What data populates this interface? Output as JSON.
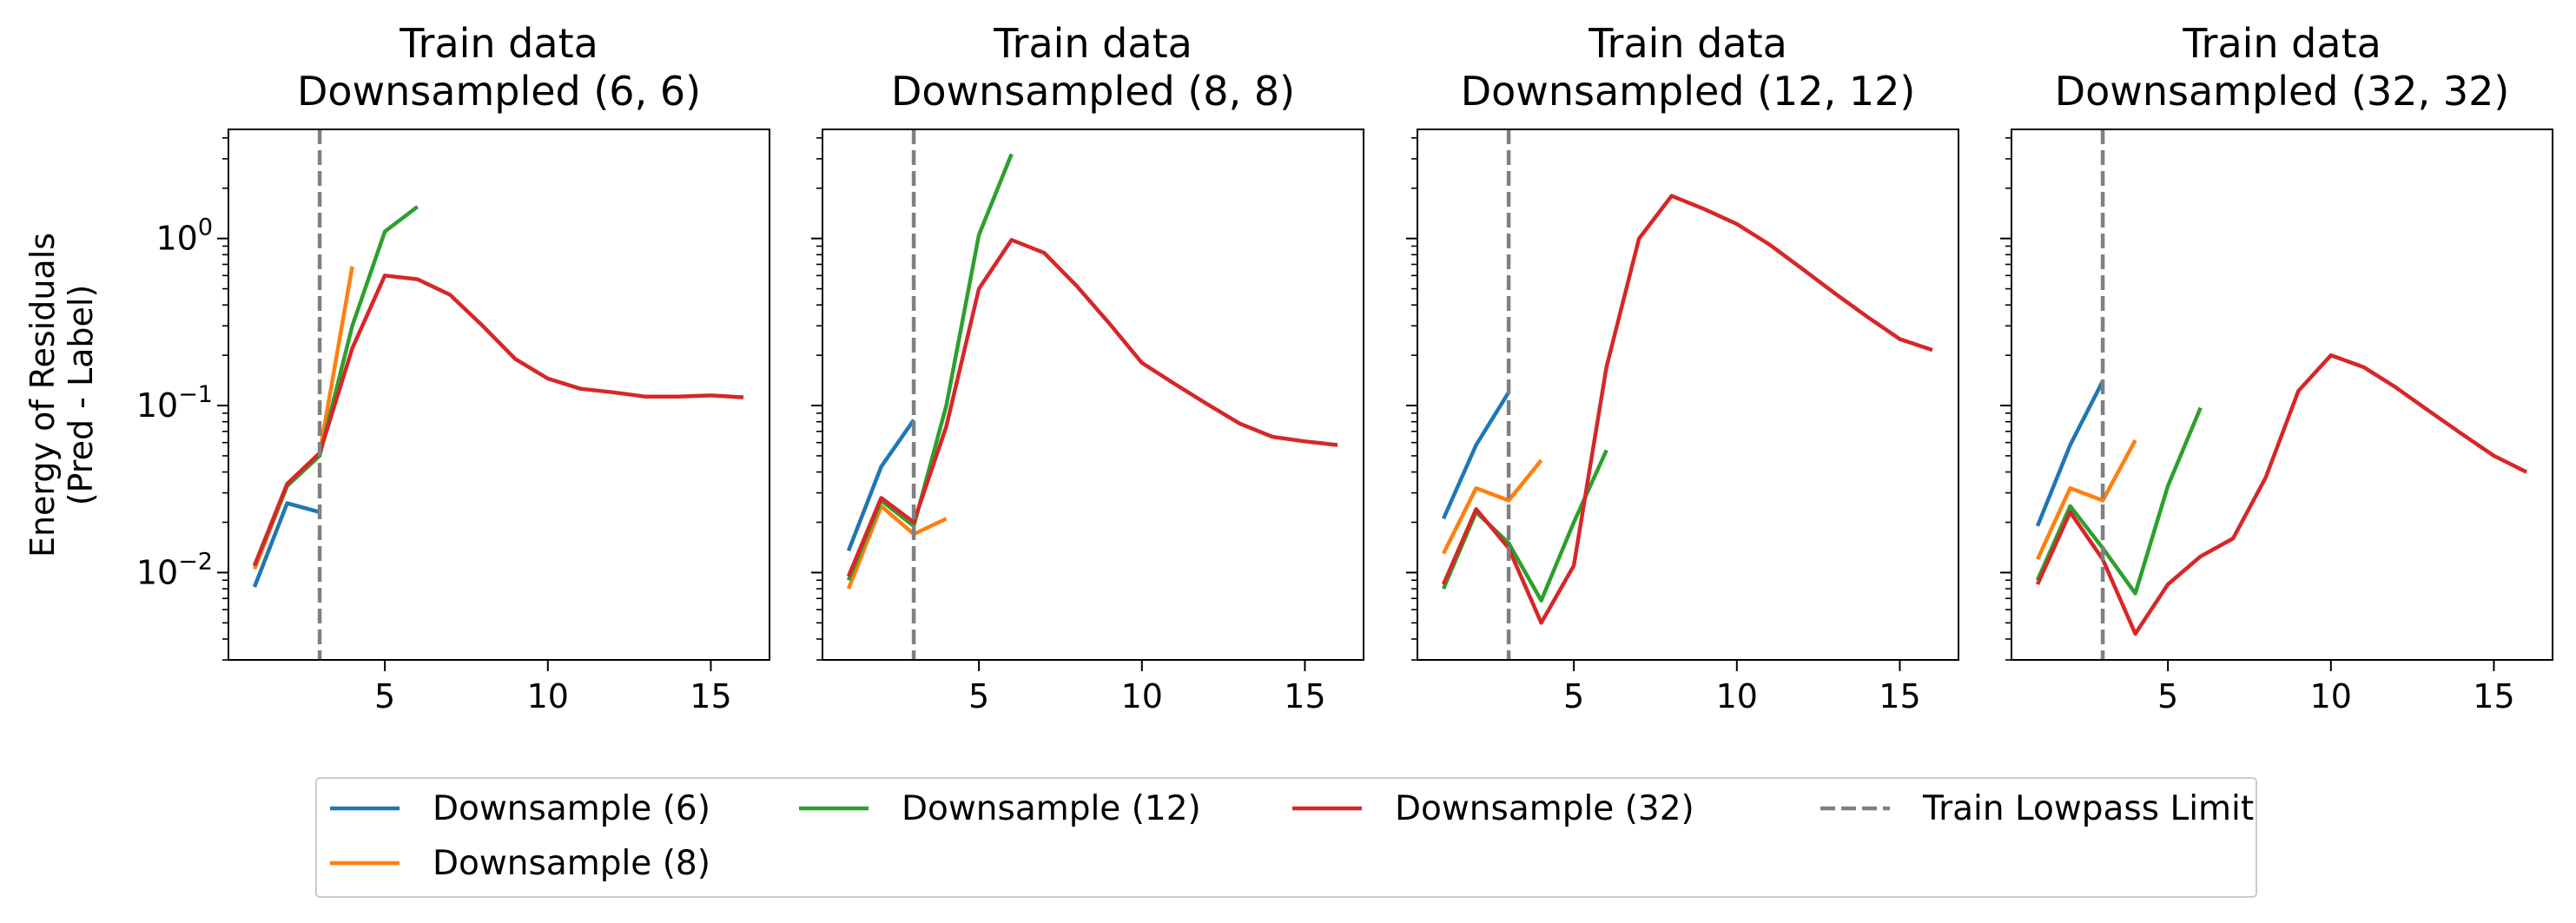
{
  "chart_data": {
    "type": "line",
    "ylabel": "Energy of Residuals\n(Pred - Label)",
    "yscale": "log",
    "ylim": [
      0.003,
      4.5
    ],
    "xlim": [
      0.2,
      16.8
    ],
    "xticks": [
      5,
      10,
      15
    ],
    "yticks": [
      {
        "value": 0.01,
        "label": "10",
        "exp": "−2"
      },
      {
        "value": 0.1,
        "label": "10",
        "exp": "−1"
      },
      {
        "value": 1,
        "label": "10",
        "exp": "0"
      }
    ],
    "grid": false,
    "legend_placement": "bottom-center",
    "colors": {
      "Downsample (6)": "#1f77b4",
      "Downsample (8)": "#ff7f0e",
      "Downsample (12)": "#2ca02c",
      "Downsample (32)": "#d62728",
      "Train Lowpass Limit": "#808080"
    },
    "legend": [
      {
        "label": "Downsample (6)",
        "color": "#1f77b4",
        "style": "solid"
      },
      {
        "label": "Downsample (12)",
        "color": "#2ca02c",
        "style": "solid"
      },
      {
        "label": "Downsample (32)",
        "color": "#d62728",
        "style": "solid"
      },
      {
        "label": "Train Lowpass Limit",
        "color": "#808080",
        "style": "dashed"
      },
      {
        "label": "Downsample (8)",
        "color": "#ff7f0e",
        "style": "solid"
      }
    ],
    "train_lowpass_limit_x": 3,
    "panels": [
      {
        "title_line1": "Train data",
        "title_line2": "Downsampled (6, 6)",
        "series": [
          {
            "name": "Downsample (6)",
            "x": [
              1,
              2,
              3
            ],
            "y": [
              0.0082,
              0.026,
              0.023
            ]
          },
          {
            "name": "Downsample (8)",
            "x": [
              1,
              2,
              3,
              4
            ],
            "y": [
              0.0105,
              0.033,
              0.052,
              0.68
            ]
          },
          {
            "name": "Downsample (12)",
            "x": [
              1,
              2,
              3,
              4,
              5,
              6
            ],
            "y": [
              0.011,
              0.033,
              0.05,
              0.3,
              1.1,
              1.55
            ]
          },
          {
            "name": "Downsample (32)",
            "x": [
              1,
              2,
              3,
              4,
              5,
              6,
              7,
              8,
              9,
              10,
              11,
              12,
              13,
              14,
              15,
              16
            ],
            "y": [
              0.011,
              0.034,
              0.052,
              0.22,
              0.6,
              0.57,
              0.46,
              0.3,
              0.19,
              0.145,
              0.126,
              0.12,
              0.113,
              0.113,
              0.115,
              0.112
            ]
          }
        ]
      },
      {
        "title_line1": "Train data",
        "title_line2": "Downsampled (8, 8)",
        "series": [
          {
            "name": "Downsample (6)",
            "x": [
              1,
              2,
              3
            ],
            "y": [
              0.0135,
              0.043,
              0.082
            ]
          },
          {
            "name": "Downsample (8)",
            "x": [
              1,
              2,
              3,
              4
            ],
            "y": [
              0.008,
              0.025,
              0.017,
              0.021
            ]
          },
          {
            "name": "Downsample (12)",
            "x": [
              1,
              2,
              3,
              4,
              5,
              6
            ],
            "y": [
              0.009,
              0.027,
              0.019,
              0.1,
              1.05,
              3.2
            ]
          },
          {
            "name": "Downsample (32)",
            "x": [
              1,
              2,
              3,
              4,
              5,
              6,
              7,
              8,
              9,
              10,
              11,
              12,
              13,
              14,
              15,
              16
            ],
            "y": [
              0.0095,
              0.028,
              0.02,
              0.075,
              0.5,
              0.98,
              0.82,
              0.52,
              0.31,
              0.18,
              0.135,
              0.102,
              0.078,
              0.065,
              0.061,
              0.058
            ]
          }
        ]
      },
      {
        "title_line1": "Train data",
        "title_line2": "Downsampled (12, 12)",
        "series": [
          {
            "name": "Downsample (6)",
            "x": [
              1,
              2,
              3
            ],
            "y": [
              0.021,
              0.058,
              0.12
            ]
          },
          {
            "name": "Downsample (8)",
            "x": [
              1,
              2,
              3,
              4
            ],
            "y": [
              0.013,
              0.032,
              0.027,
              0.047
            ]
          },
          {
            "name": "Downsample (12)",
            "x": [
              1,
              2,
              3,
              4,
              5,
              6
            ],
            "y": [
              0.008,
              0.023,
              0.015,
              0.0068,
              0.02,
              0.054
            ]
          },
          {
            "name": "Downsample (32)",
            "x": [
              1,
              2,
              3,
              4,
              5,
              6,
              7,
              8,
              9,
              10,
              11,
              12,
              13,
              14,
              15,
              16
            ],
            "y": [
              0.0085,
              0.024,
              0.014,
              0.005,
              0.011,
              0.17,
              1.0,
              1.8,
              1.5,
              1.22,
              0.92,
              0.66,
              0.47,
              0.34,
              0.25,
              0.215
            ]
          }
        ]
      },
      {
        "title_line1": "Train data",
        "title_line2": "Downsampled (32, 32)",
        "series": [
          {
            "name": "Downsample (6)",
            "x": [
              1,
              2,
              3
            ],
            "y": [
              0.019,
              0.058,
              0.14
            ]
          },
          {
            "name": "Downsample (8)",
            "x": [
              1,
              2,
              3,
              4
            ],
            "y": [
              0.012,
              0.032,
              0.027,
              0.062
            ]
          },
          {
            "name": "Downsample (12)",
            "x": [
              1,
              2,
              3,
              4,
              5,
              6
            ],
            "y": [
              0.009,
              0.025,
              0.014,
              0.0075,
              0.033,
              0.097
            ]
          },
          {
            "name": "Downsample (32)",
            "x": [
              1,
              2,
              3,
              4,
              5,
              6,
              7,
              8,
              9,
              10,
              11,
              12,
              13,
              14,
              15,
              16
            ],
            "y": [
              0.0085,
              0.023,
              0.012,
              0.0043,
              0.0085,
              0.0125,
              0.016,
              0.037,
              0.122,
              0.2,
              0.17,
              0.128,
              0.093,
              0.068,
              0.05,
              0.04
            ]
          }
        ]
      }
    ]
  }
}
